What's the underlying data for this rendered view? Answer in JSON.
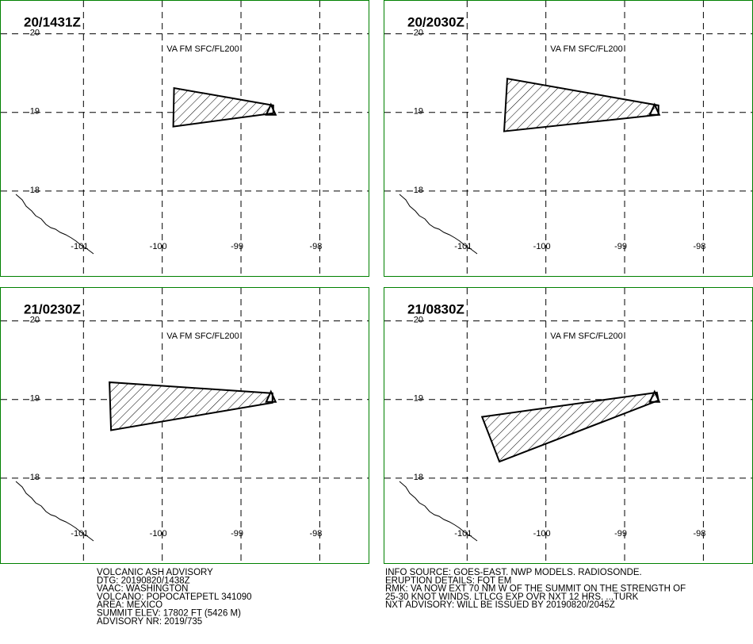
{
  "panels": [
    {
      "title": "20/1431Z",
      "label": "VA FM SFC/FL200",
      "polygon": [
        [
          -99.85,
          19.31
        ],
        [
          -99.86,
          18.82
        ],
        [
          -98.59,
          18.99
        ],
        [
          -98.59,
          19.09
        ]
      ]
    },
    {
      "title": "20/2030Z",
      "label": "VA FM SFC/FL200",
      "polygon": [
        [
          -100.49,
          19.43
        ],
        [
          -100.53,
          18.76
        ],
        [
          -98.57,
          18.97
        ],
        [
          -98.57,
          19.09
        ]
      ]
    },
    {
      "title": "21/0230Z",
      "label": "VA FM SFC/FL200",
      "polygon": [
        [
          -100.67,
          19.22
        ],
        [
          -100.65,
          18.61
        ],
        [
          -98.6,
          18.96
        ],
        [
          -98.6,
          19.08
        ]
      ]
    },
    {
      "title": "21/0830Z",
      "label": "VA FM SFC/FL200",
      "polygon": [
        [
          -100.81,
          18.78
        ],
        [
          -100.59,
          18.21
        ],
        [
          -98.57,
          18.99
        ],
        [
          -98.59,
          19.09
        ]
      ]
    }
  ],
  "map": {
    "lonlim": [
      -102.06,
      -97.38
    ],
    "latlim": [
      16.92,
      20.43
    ],
    "lonticks": [
      -101,
      -100,
      -99,
      -98
    ],
    "latticks": [
      20,
      19,
      18
    ],
    "summit": [
      -98.62,
      19.02
    ]
  },
  "advisory": {
    "left": [
      "VOLCANIC ASH ADVISORY",
      "DTG: 20190820/1438Z",
      "VAAC: WASHINGTON",
      "VOLCANO: POPOCATEPETL 341090",
      "AREA: MEXICO",
      "SUMMIT ELEV: 17802 FT (5426 M)",
      "ADVISORY NR: 2019/735"
    ],
    "right": [
      "INFO SOURCE: GOES-EAST. NWP MODELS. RADIOSONDE.",
      "ERUPTION DETAILS: FQT EM",
      "RMK: VA NOW EXT 70 NM W OF THE SUMMIT ON THE STRENGTH OF",
      "25-30 KNOT WINDS. LTLCG EXP OVR NXT 12 HRS. ...TURK",
      "NXT ADVISORY: WILL BE ISSUED BY 20190820/2045Z"
    ]
  }
}
